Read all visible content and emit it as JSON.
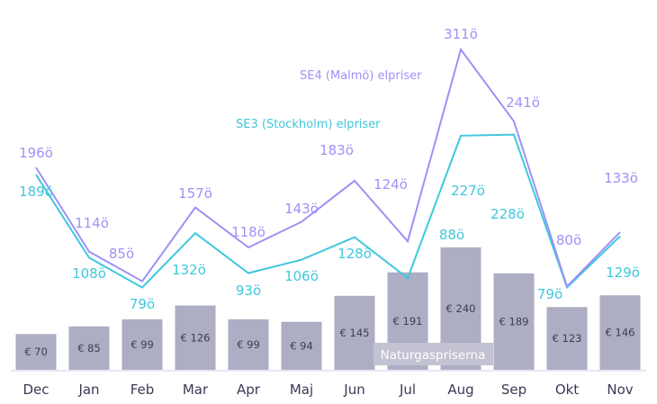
{
  "chart_data": {
    "type": "bar+line",
    "categories": [
      "Dec",
      "Jan",
      "Feb",
      "Mar",
      "Apr",
      "Maj",
      "Jun",
      "Jul",
      "Aug",
      "Sep",
      "Okt",
      "Nov"
    ],
    "series": [
      {
        "name": "Naturgaspriserna",
        "type": "bar",
        "unit": "€",
        "values": [
          70,
          85,
          99,
          126,
          99,
          94,
          145,
          191,
          240,
          189,
          123,
          146
        ],
        "labels": [
          "€ 70",
          "€ 85",
          "€ 99",
          "€ 126",
          "€ 99",
          "€ 94",
          "€ 145",
          "€ 191",
          "€ 240",
          "€ 189",
          "€ 123",
          "€ 146"
        ],
        "color": "#adadc3"
      },
      {
        "name": "SE4 (Malmö) elpriser",
        "type": "line",
        "unit": "öre",
        "values": [
          196,
          114,
          85,
          157,
          118,
          143,
          183,
          124,
          311,
          241,
          80,
          133
        ],
        "labels": [
          "196ö",
          "114ö",
          "85ö",
          "157ö",
          "118ö",
          "143ö",
          "183ö",
          "124ö",
          "311ö",
          "241ö",
          "80ö",
          "133ö"
        ],
        "color": "#9d92f7"
      },
      {
        "name": "SE3 (Stockholm) elpriser",
        "type": "line",
        "unit": "öre",
        "values": [
          189,
          108,
          79,
          132,
          93,
          106,
          128,
          88,
          227,
          228,
          79,
          129
        ],
        "labels": [
          "189ö",
          "108ö",
          "79ö",
          "132ö",
          "93ö",
          "106ö",
          "128ö",
          "88ö",
          "227ö",
          "228ö",
          "79ö",
          "129ö"
        ],
        "color": "#3fc8dc"
      }
    ],
    "grid": false
  }
}
